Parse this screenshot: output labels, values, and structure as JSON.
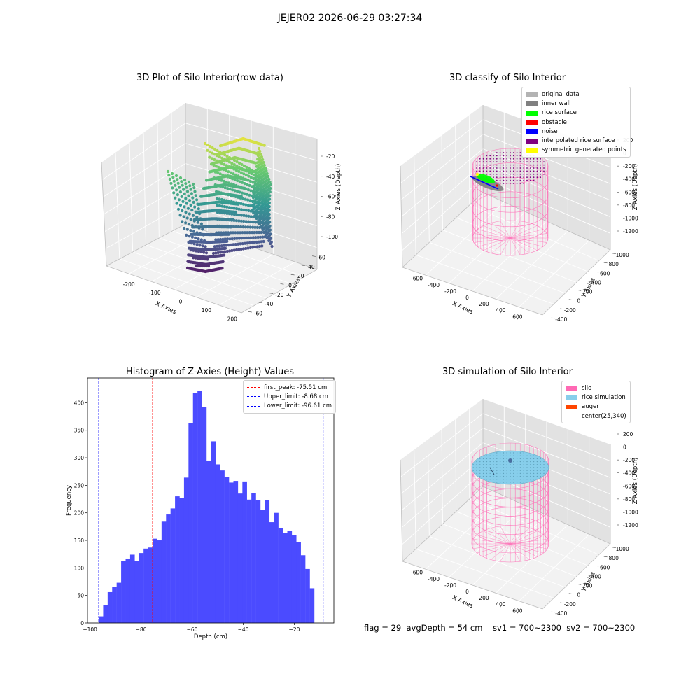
{
  "figure": {
    "suptitle": "JEJER02 2026-06-29 03:27:34",
    "footer": {
      "flag": "flag = 29",
      "avg_depth": "avgDepth = 54 cm",
      "sv1": "sv1 = 700~2300",
      "sv2": "sv2 = 700~2300"
    }
  },
  "chart_data": [
    {
      "id": "raw",
      "type": "scatter",
      "title": "3D Plot of Silo Interior(row data)",
      "xlabel": "X Axies",
      "ylabel": "Y Axies",
      "zlabel": "Z Axies (Depth)",
      "x_ticks": [
        "-200",
        "-100",
        "0",
        "100",
        "200"
      ],
      "y_ticks": [
        "-60",
        "-40",
        "-20",
        "0",
        "20",
        "40",
        "60"
      ],
      "z_ticks": [
        "-20",
        "-40",
        "-60",
        "-80",
        "-100"
      ],
      "colormap": "viridis",
      "grid": true
    },
    {
      "id": "classify",
      "type": "scatter",
      "title": "3D classify of Silo Interior",
      "xlabel": "X Axies",
      "ylabel": "Y Axies",
      "zlabel": "Z Axies (Depth)",
      "x_ticks": [
        "-600",
        "-400",
        "-200",
        "0",
        "200",
        "400",
        "600"
      ],
      "y_ticks": [
        "-400",
        "-200",
        "0",
        "200",
        "400",
        "600",
        "800",
        "1000"
      ],
      "z_ticks": [
        "200",
        "0",
        "-200",
        "-400",
        "-600",
        "-800",
        "-1000",
        "-1200"
      ],
      "legend_position": "top-right",
      "legend": [
        {
          "label": "original data",
          "color": "#b3b3b3"
        },
        {
          "label": "inner wall",
          "color": "#808080"
        },
        {
          "label": "rice surface",
          "color": "#00ff00"
        },
        {
          "label": "obstacle",
          "color": "#ff0000"
        },
        {
          "label": "noise",
          "color": "#0000ff"
        },
        {
          "label": "interpolated rice surface",
          "color": "#800080"
        },
        {
          "label": "symmetric generated points",
          "color": "#ffff00"
        }
      ],
      "grid": true
    },
    {
      "id": "histogram",
      "type": "bar",
      "title": "Histogram of Z-Axies (Height) Values",
      "xlabel": "Depth (cm)",
      "ylabel": "Frequency",
      "x_range": [
        -101,
        -4.5
      ],
      "ylim": [
        0,
        445
      ],
      "x_ticks": [
        -100,
        -80,
        -60,
        -40,
        -20
      ],
      "y_ticks": [
        0,
        50,
        100,
        150,
        200,
        250,
        300,
        350,
        400
      ],
      "bin_start": -96.61,
      "bin_width": 1.759,
      "values": [
        12,
        33,
        56,
        66,
        73,
        113,
        117,
        124,
        112,
        127,
        135,
        137,
        153,
        150,
        184,
        197,
        208,
        230,
        227,
        264,
        363,
        418,
        421,
        392,
        295,
        330,
        288,
        277,
        265,
        255,
        258,
        235,
        257,
        224,
        236,
        223,
        205,
        223,
        183,
        200,
        172,
        164,
        167,
        159,
        147,
        123,
        98,
        63
      ],
      "bar_color": "#4b4bff",
      "legend_position": "top-right",
      "lines": [
        {
          "label": "first_peak: -75.51 cm",
          "x": -75.51,
          "color": "#ff0000"
        },
        {
          "label": "Upper_limit: -8.68 cm",
          "x": -8.68,
          "color": "#0000ff"
        },
        {
          "label": "Lower_limit: -96.61 cm",
          "x": -96.61,
          "color": "#0000ff"
        }
      ]
    },
    {
      "id": "simulation",
      "type": "scatter",
      "title": "3D simulation of Silo Interior",
      "xlabel": "X Axies",
      "ylabel": "Y Axies",
      "zlabel": "Z Axies (Depth)",
      "x_ticks": [
        "-600",
        "-400",
        "-200",
        "0",
        "200",
        "400",
        "600"
      ],
      "y_ticks": [
        "-400",
        "-200",
        "0",
        "200",
        "400",
        "600",
        "800",
        "1000"
      ],
      "z_ticks": [
        "200",
        "0",
        "-200",
        "-400",
        "-600",
        "-800",
        "-1000",
        "-1200"
      ],
      "legend_position": "top-right",
      "legend": [
        {
          "label": "silo",
          "color": "#ff69b4"
        },
        {
          "label": "rice simulation",
          "color": "#87ceeb"
        },
        {
          "label": "auger",
          "color": "#ff4500"
        },
        {
          "label": "center(25,340)",
          "color": ""
        }
      ],
      "grid": true
    }
  ]
}
